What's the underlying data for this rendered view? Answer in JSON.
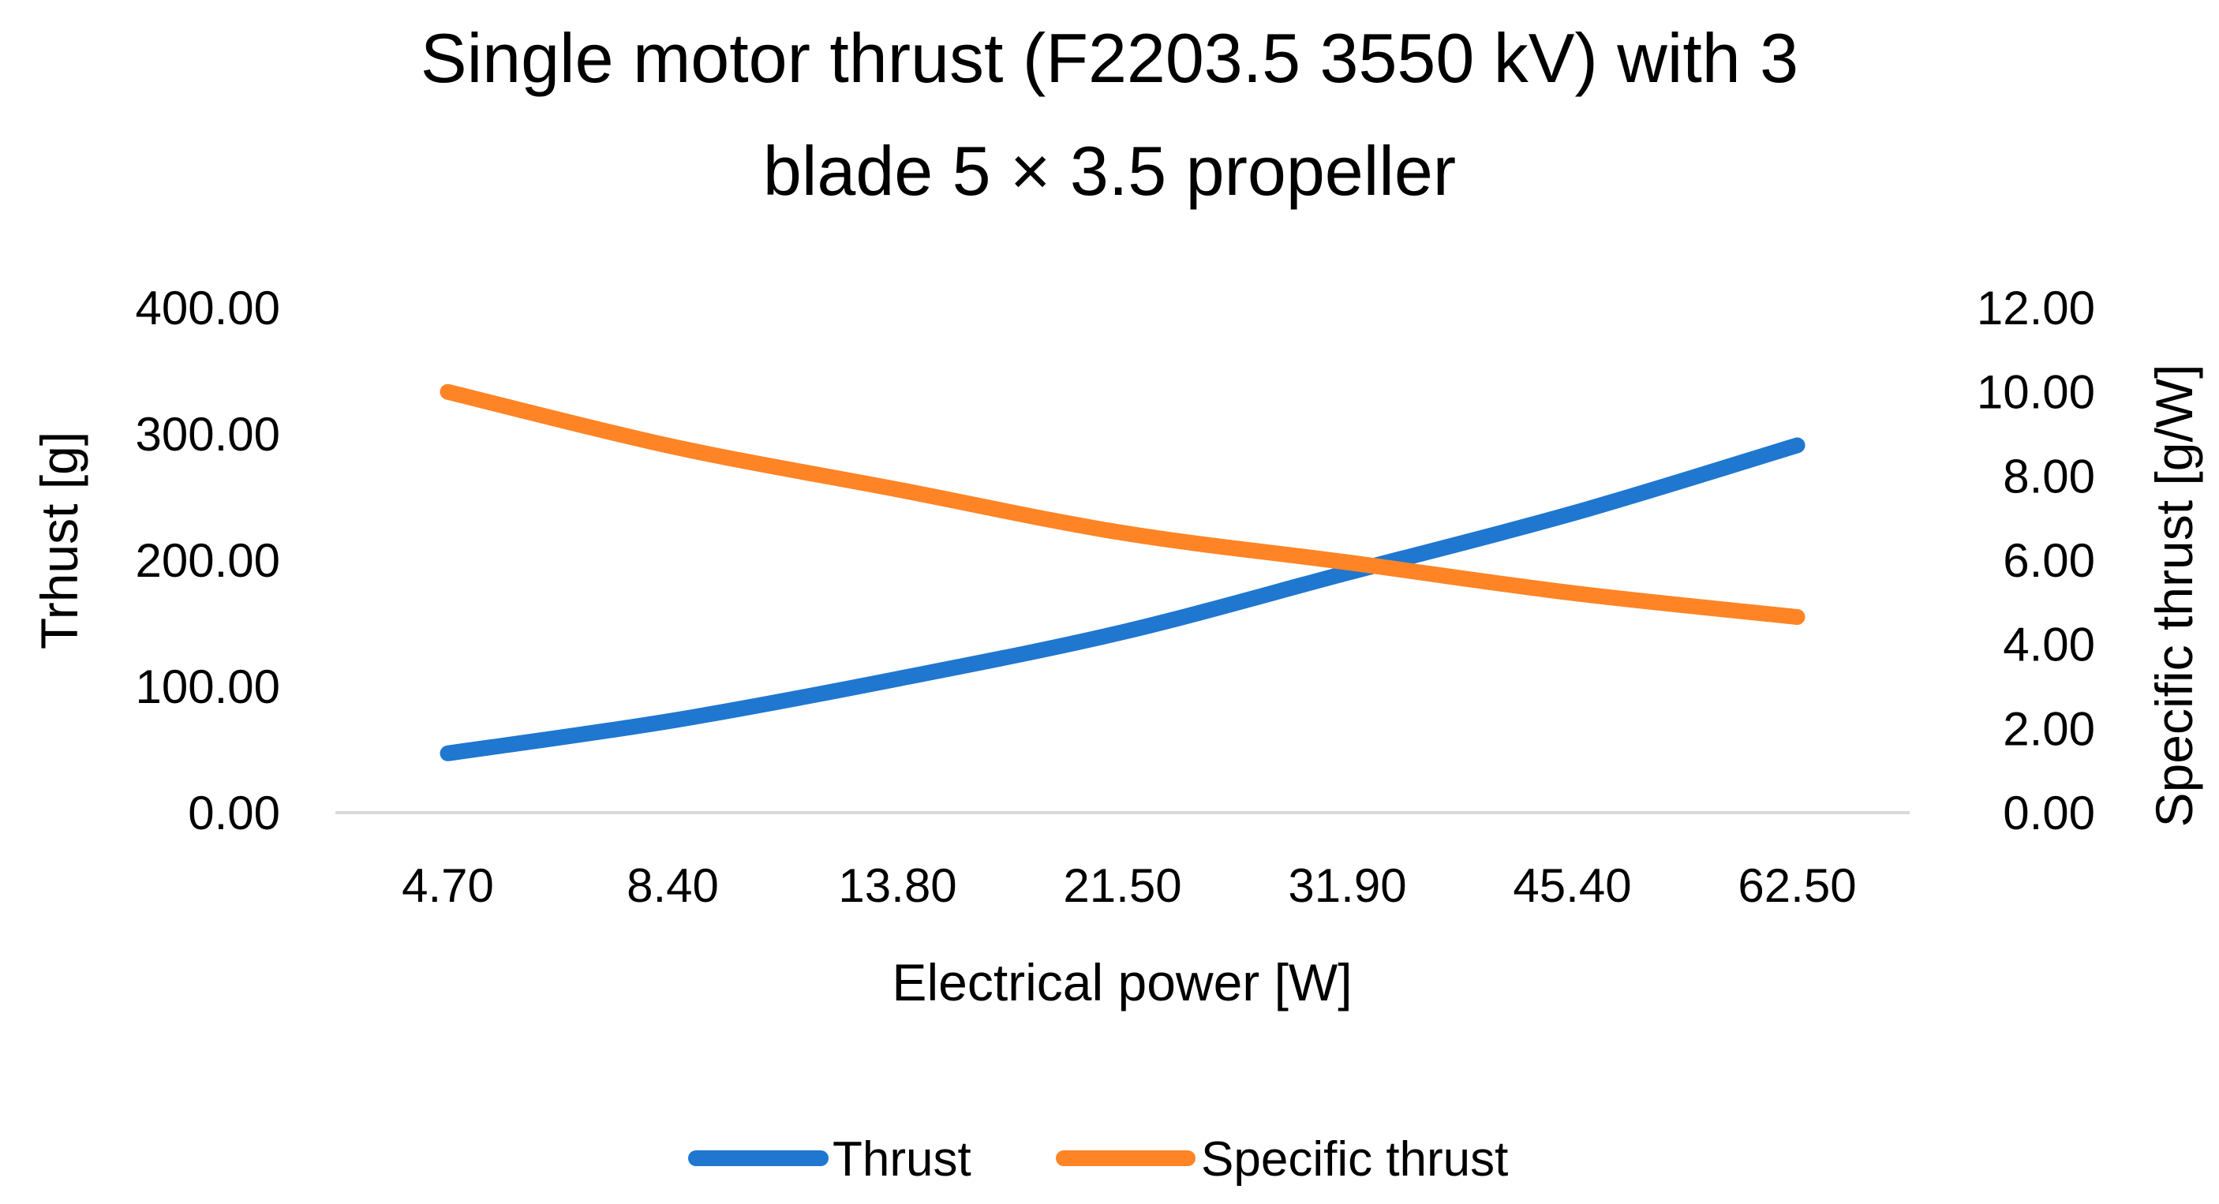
{
  "chart_data": {
    "type": "line",
    "title_lines": [
      "Single motor thrust (F2203.5 3550 kV) with 3",
      "blade 5 × 3.5 propeller"
    ],
    "xlabel": "Electrical power [W]",
    "ylabel": "Trhust [g]",
    "y2label": "Specific thrust [g/W]",
    "categories": [
      "4.70",
      "8.40",
      "13.80",
      "21.50",
      "31.90",
      "45.40",
      "62.50"
    ],
    "y_ticks": [
      "0.00",
      "100.00",
      "200.00",
      "300.00",
      "400.00"
    ],
    "y2_ticks": [
      "0.00",
      "2.00",
      "4.00",
      "6.00",
      "8.00",
      "10.00",
      "12.00"
    ],
    "ylim": [
      0,
      400
    ],
    "y2lim": [
      0,
      12
    ],
    "grid": false,
    "legend_position": "bottom",
    "series": [
      {
        "name": "Thrust",
        "axis": "left",
        "color": "#1F77D0",
        "values": [
          47,
          73,
          106,
          143,
          190,
          237,
          291
        ]
      },
      {
        "name": "Specific thrust",
        "axis": "right",
        "color": "#FF8426",
        "values": [
          10.0,
          8.7,
          7.68,
          6.65,
          5.95,
          5.22,
          4.65
        ]
      }
    ]
  }
}
